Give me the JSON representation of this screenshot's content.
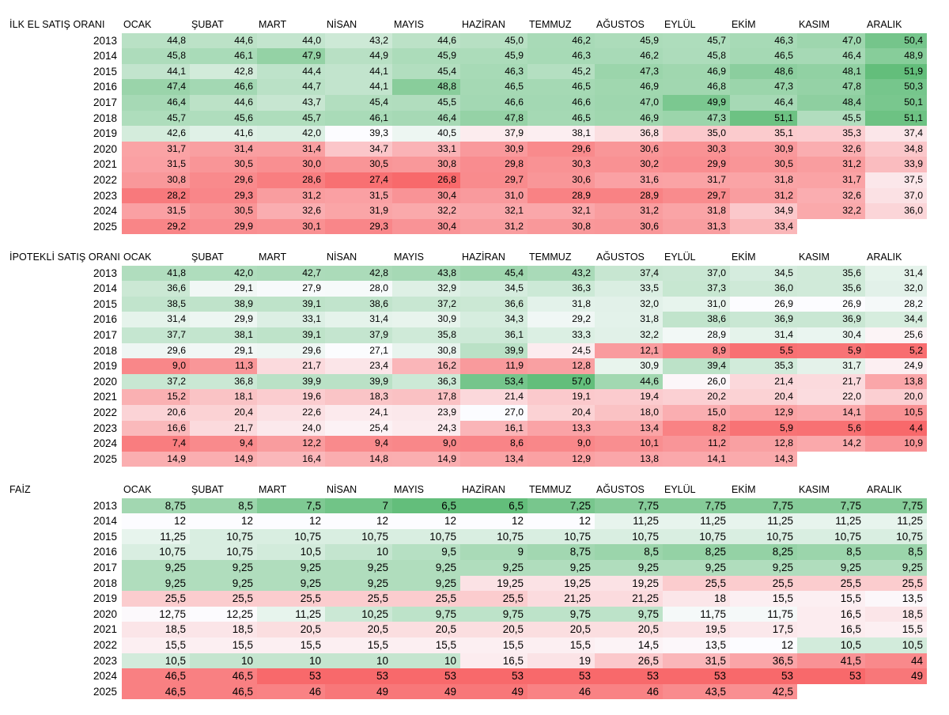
{
  "months": [
    "OCAK",
    "ŞUBAT",
    "MART",
    "NİSAN",
    "MAYIS",
    "HAZİRAN",
    "TEMMUZ",
    "AĞUSTOS",
    "EYLÜL",
    "EKİM",
    "KASIM",
    "ARALIK"
  ],
  "sections": [
    {
      "title": "İLK EL SATIŞ ORANI",
      "scale": "high_good",
      "rows": [
        {
          "year": "2013",
          "values": [
            "44,8",
            "44,6",
            "44,0",
            "43,2",
            "44,6",
            "45,0",
            "46,2",
            "45,9",
            "45,7",
            "46,3",
            "47,0",
            "50,4"
          ]
        },
        {
          "year": "2014",
          "values": [
            "45,8",
            "46,1",
            "47,9",
            "44,9",
            "45,9",
            "45,9",
            "46,3",
            "46,2",
            "45,8",
            "46,5",
            "46,4",
            "48,9"
          ]
        },
        {
          "year": "2015",
          "values": [
            "44,1",
            "42,8",
            "44,4",
            "44,1",
            "45,4",
            "46,3",
            "45,2",
            "47,3",
            "46,9",
            "48,6",
            "48,1",
            "51,9"
          ]
        },
        {
          "year": "2016",
          "values": [
            "47,4",
            "46,6",
            "44,7",
            "44,1",
            "48,8",
            "46,5",
            "46,5",
            "46,9",
            "46,8",
            "47,3",
            "47,8",
            "50,3"
          ]
        },
        {
          "year": "2017",
          "values": [
            "46,4",
            "44,6",
            "43,7",
            "45,4",
            "45,5",
            "46,6",
            "46,6",
            "47,0",
            "49,9",
            "46,4",
            "48,4",
            "50,1"
          ]
        },
        {
          "year": "2018",
          "values": [
            "45,7",
            "45,6",
            "45,7",
            "46,1",
            "46,4",
            "47,8",
            "46,5",
            "46,9",
            "47,3",
            "51,1",
            "45,5",
            "51,1"
          ]
        },
        {
          "year": "2019",
          "values": [
            "42,6",
            "41,6",
            "42,0",
            "39,3",
            "40,5",
            "37,9",
            "38,1",
            "36,8",
            "35,0",
            "35,1",
            "35,3",
            "37,4"
          ]
        },
        {
          "year": "2020",
          "values": [
            "31,7",
            "31,4",
            "31,4",
            "34,7",
            "33,1",
            "30,9",
            "29,6",
            "30,6",
            "30,3",
            "30,9",
            "32,6",
            "34,8"
          ]
        },
        {
          "year": "2021",
          "values": [
            "31,5",
            "30,5",
            "30,0",
            "30,5",
            "30,8",
            "29,8",
            "30,3",
            "30,2",
            "29,9",
            "30,5",
            "31,2",
            "33,9"
          ]
        },
        {
          "year": "2022",
          "values": [
            "30,8",
            "29,6",
            "28,6",
            "27,4",
            "26,8",
            "29,7",
            "30,6",
            "31,6",
            "31,7",
            "31,8",
            "31,7",
            "37,5"
          ]
        },
        {
          "year": "2023",
          "values": [
            "28,2",
            "29,3",
            "31,2",
            "31,5",
            "30,4",
            "31,0",
            "28,9",
            "28,9",
            "29,7",
            "31,2",
            "32,6",
            "37,0"
          ]
        },
        {
          "year": "2024",
          "values": [
            "31,5",
            "30,5",
            "32,6",
            "31,9",
            "32,2",
            "32,1",
            "32,1",
            "31,2",
            "31,8",
            "34,9",
            "32,2",
            "36,0"
          ]
        },
        {
          "year": "2025",
          "values": [
            "29,2",
            "29,9",
            "30,1",
            "29,3",
            "30,4",
            "31,2",
            "30,8",
            "30,6",
            "31,3",
            "33,4",
            "",
            ""
          ]
        }
      ]
    },
    {
      "title": "İPOTEKLİ SATIŞ ORANI",
      "scale": "high_good",
      "rows": [
        {
          "year": "2013",
          "values": [
            "41,8",
            "42,0",
            "42,7",
            "42,8",
            "43,8",
            "45,4",
            "43,2",
            "37,4",
            "37,0",
            "34,5",
            "35,6",
            "31,4"
          ]
        },
        {
          "year": "2014",
          "values": [
            "36,6",
            "29,1",
            "27,9",
            "28,0",
            "32,9",
            "34,5",
            "36,3",
            "33,5",
            "37,3",
            "36,0",
            "35,6",
            "32,0"
          ]
        },
        {
          "year": "2015",
          "values": [
            "38,5",
            "38,9",
            "39,1",
            "38,6",
            "37,2",
            "36,6",
            "31,8",
            "32,0",
            "31,0",
            "26,9",
            "26,9",
            "28,2"
          ]
        },
        {
          "year": "2016",
          "values": [
            "31,4",
            "29,9",
            "33,1",
            "31,4",
            "30,9",
            "34,3",
            "29,2",
            "31,8",
            "38,6",
            "36,9",
            "36,9",
            "34,4"
          ]
        },
        {
          "year": "2017",
          "values": [
            "37,7",
            "38,1",
            "39,1",
            "37,9",
            "35,8",
            "36,1",
            "33,3",
            "32,2",
            "28,9",
            "31,4",
            "30,4",
            "25,6"
          ]
        },
        {
          "year": "2018",
          "values": [
            "29,6",
            "29,1",
            "29,6",
            "27,1",
            "30,8",
            "39,9",
            "24,5",
            "12,1",
            "8,9",
            "5,5",
            "5,9",
            "5,2"
          ]
        },
        {
          "year": "2019",
          "values": [
            "9,0",
            "11,3",
            "21,7",
            "23,4",
            "16,2",
            "11,9",
            "12,8",
            "30,9",
            "39,4",
            "35,3",
            "31,7",
            "24,9"
          ]
        },
        {
          "year": "2020",
          "values": [
            "37,2",
            "36,8",
            "39,9",
            "39,9",
            "36,3",
            "53,4",
            "57,0",
            "44,6",
            "26,0",
            "21,4",
            "21,7",
            "13,8"
          ]
        },
        {
          "year": "2021",
          "values": [
            "15,2",
            "18,1",
            "19,6",
            "18,3",
            "17,8",
            "21,4",
            "19,1",
            "19,4",
            "20,2",
            "20,4",
            "22,0",
            "20,0"
          ]
        },
        {
          "year": "2022",
          "values": [
            "20,6",
            "20,4",
            "22,6",
            "24,1",
            "23,9",
            "27,0",
            "20,4",
            "18,0",
            "15,0",
            "12,9",
            "14,1",
            "10,5"
          ]
        },
        {
          "year": "2023",
          "values": [
            "16,6",
            "21,7",
            "24,0",
            "25,4",
            "24,3",
            "16,1",
            "13,3",
            "13,4",
            "8,2",
            "5,9",
            "5,6",
            "4,4"
          ]
        },
        {
          "year": "2024",
          "values": [
            "7,4",
            "9,4",
            "12,2",
            "9,4",
            "9,0",
            "8,6",
            "9,0",
            "10,1",
            "11,2",
            "12,8",
            "14,2",
            "10,9"
          ]
        },
        {
          "year": "2025",
          "values": [
            "14,9",
            "14,9",
            "16,4",
            "14,8",
            "14,9",
            "13,4",
            "12,9",
            "13,8",
            "14,1",
            "14,3",
            "",
            ""
          ]
        }
      ]
    },
    {
      "title": "FAİZ",
      "scale": "low_good",
      "rows": [
        {
          "year": "2013",
          "values": [
            "8,75",
            "8,5",
            "7,5",
            "7",
            "6,5",
            "6,5",
            "7,25",
            "7,75",
            "7,75",
            "7,75",
            "7,75",
            "7,75"
          ]
        },
        {
          "year": "2014",
          "values": [
            "12",
            "12",
            "12",
            "12",
            "12",
            "12",
            "12",
            "11,25",
            "11,25",
            "11,25",
            "11,25",
            "11,25"
          ]
        },
        {
          "year": "2015",
          "values": [
            "11,25",
            "10,75",
            "10,75",
            "10,75",
            "10,75",
            "10,75",
            "10,75",
            "10,75",
            "10,75",
            "10,75",
            "10,75",
            "10,75"
          ]
        },
        {
          "year": "2016",
          "values": [
            "10,75",
            "10,75",
            "10,5",
            "10",
            "9,5",
            "9",
            "8,75",
            "8,5",
            "8,25",
            "8,25",
            "8,5",
            "8,5"
          ]
        },
        {
          "year": "2017",
          "values": [
            "9,25",
            "9,25",
            "9,25",
            "9,25",
            "9,25",
            "9,25",
            "9,25",
            "9,25",
            "9,25",
            "9,25",
            "9,25",
            "9,25"
          ]
        },
        {
          "year": "2018",
          "values": [
            "9,25",
            "9,25",
            "9,25",
            "9,25",
            "9,25",
            "19,25",
            "19,25",
            "19,25",
            "25,5",
            "25,5",
            "25,5",
            "25,5"
          ]
        },
        {
          "year": "2019",
          "values": [
            "25,5",
            "25,5",
            "25,5",
            "25,5",
            "25,5",
            "25,5",
            "21,25",
            "21,25",
            "18",
            "15,5",
            "15,5",
            "13,5"
          ]
        },
        {
          "year": "2020",
          "values": [
            "12,75",
            "12,25",
            "11,25",
            "10,25",
            "9,75",
            "9,75",
            "9,75",
            "9,75",
            "11,75",
            "11,75",
            "16,5",
            "18,5"
          ]
        },
        {
          "year": "2021",
          "values": [
            "18,5",
            "18,5",
            "20,5",
            "20,5",
            "20,5",
            "20,5",
            "20,5",
            "20,5",
            "19,5",
            "17,5",
            "16,5",
            "15,5"
          ]
        },
        {
          "year": "2022",
          "values": [
            "15,5",
            "15,5",
            "15,5",
            "15,5",
            "15,5",
            "15,5",
            "15,5",
            "14,5",
            "13,5",
            "12",
            "10,5",
            "10,5"
          ]
        },
        {
          "year": "2023",
          "values": [
            "10,5",
            "10",
            "10",
            "10",
            "10",
            "16,5",
            "19",
            "26,5",
            "31,5",
            "36,5",
            "41,5",
            "44"
          ]
        },
        {
          "year": "2024",
          "values": [
            "46,5",
            "46,5",
            "53",
            "53",
            "53",
            "53",
            "53",
            "53",
            "53",
            "53",
            "53",
            "49"
          ]
        },
        {
          "year": "2025",
          "values": [
            "46,5",
            "46,5",
            "46",
            "49",
            "49",
            "49",
            "46",
            "46",
            "43,5",
            "42,5",
            "",
            ""
          ]
        }
      ]
    }
  ],
  "colors": {
    "green_strong": "#63be7b",
    "neutral": "#fcfcff",
    "red_strong": "#f8696b"
  }
}
